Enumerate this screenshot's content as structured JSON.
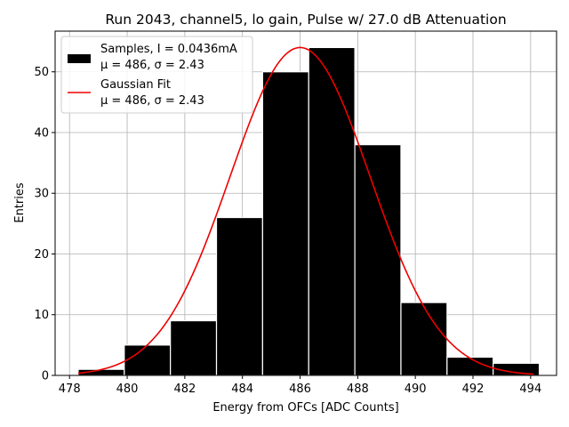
{
  "chart_data": {
    "type": "bar",
    "title": "Run 2043, channel5, lo gain, Pulse w/ 27.0 dB Attenuation",
    "xlabel": "Energy from OFCs [ADC Counts]",
    "ylabel": "Entries",
    "xlim": [
      477.5,
      494.9
    ],
    "ylim": [
      0,
      56.7
    ],
    "grid": true,
    "x_ticks": [
      478,
      480,
      482,
      484,
      486,
      488,
      490,
      492,
      494
    ],
    "x_tick_labels": [
      "478",
      "480",
      "482",
      "484",
      "486",
      "488",
      "490",
      "492",
      "494"
    ],
    "y_ticks": [
      0,
      10,
      20,
      30,
      40,
      50
    ],
    "y_tick_labels": [
      "0",
      "10",
      "20",
      "30",
      "40",
      "50"
    ],
    "bin_edges": [
      478.3,
      479.9,
      481.5,
      483.1,
      484.7,
      486.3,
      487.9,
      489.5,
      491.1,
      492.7,
      494.3
    ],
    "bin_counts": [
      1,
      5,
      9,
      26,
      50,
      54,
      38,
      12,
      3,
      2
    ],
    "gaussian_fit": {
      "amplitude": 54,
      "mu": 486,
      "sigma": 2.43,
      "x_range": [
        478.3,
        494.1
      ]
    },
    "colors": {
      "bars": "#000000",
      "bar_edges": "#ffffff",
      "fit_line": "#ee0000",
      "grid": "#b0b0b0"
    },
    "legend": {
      "position": "top-left",
      "entries": [
        {
          "line1": "Samples, I = 0.0436mA",
          "line2": "μ = 486, σ = 2.43",
          "marker": "box"
        },
        {
          "line1": "Gaussian Fit",
          "line2": "μ = 486, σ = 2.43",
          "marker": "line"
        }
      ]
    }
  }
}
